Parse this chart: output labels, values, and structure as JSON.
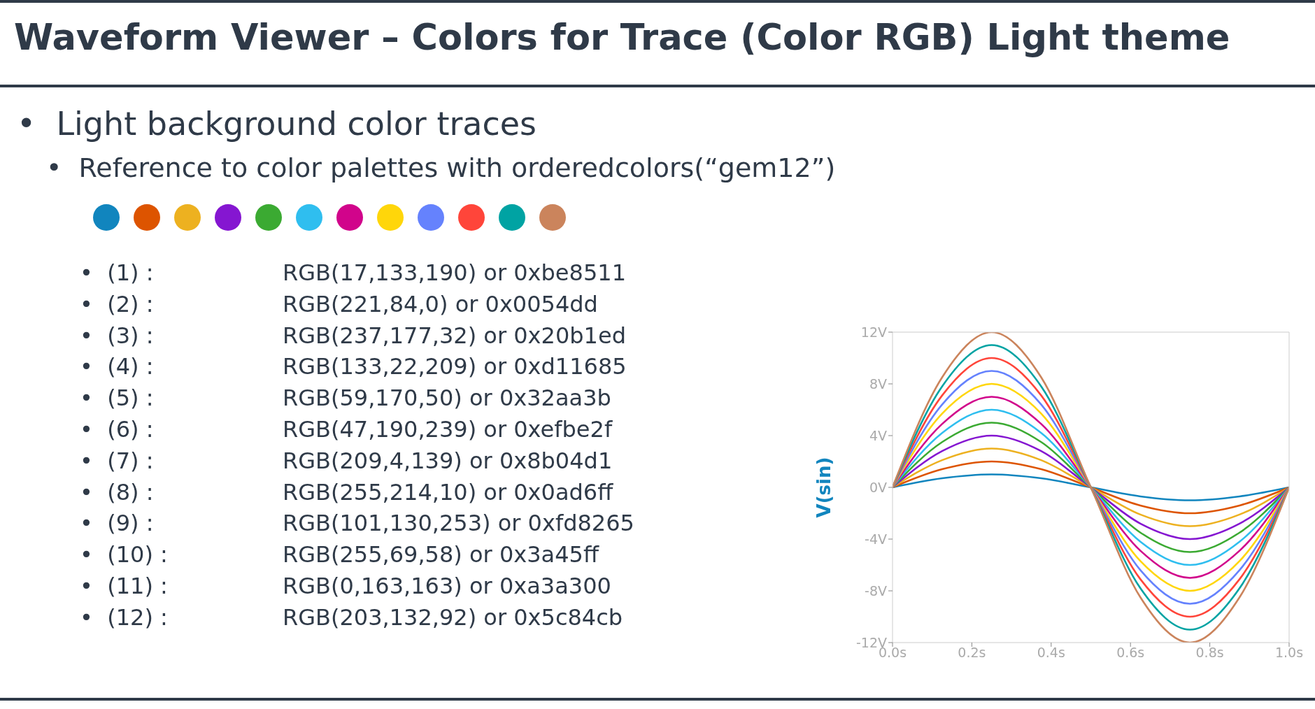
{
  "chart_data": {
    "type": "line",
    "title": "Waveform Viewer – Colors for Trace (Color RGB) Light theme",
    "ylabel": "V(sin)",
    "annotations": [
      "•  Light background color traces",
      "•  Reference to color palettes with orderedcolors(“gem12”)",
      "•  (1) :",
      "RGB(17,133,190) or 0xbe8511",
      "•  (2) :",
      "RGB(221,84,0) or 0x0054dd",
      "•  (3) :",
      "RGB(237,177,32) or 0x20b1ed",
      "•  (4) :",
      "RGB(133,22,209) or 0xd11685",
      "•  (5) :",
      "RGB(59,170,50) or 0x32aa3b",
      "•  (6) :",
      "RGB(47,190,239) or 0xefbe2f",
      "•  (7) :",
      "RGB(209,4,139) or 0x8b04d1",
      "•  (8) :",
      "RGB(255,214,10) or 0x0ad6ff",
      "•  (9) :",
      "RGB(101,130,253) or 0xfd8265",
      "•  (10) :",
      "RGB(255,69,58) or 0x3a45ff",
      "•  (11) :",
      "RGB(0,163,163) or 0xa3a300",
      "•  (12) :",
      "RGB(203,132,92) or 0x5c84cb"
    ],
    "x": [
      0,
      0.125,
      0.25,
      0.375,
      0.5,
      0.625,
      0.75,
      0.875,
      1
    ],
    "series": [
      {
        "color": "#1185be",
        "values": [
          0,
          0.7,
          1,
          0.7,
          0,
          -0.7,
          -1,
          -0.7,
          0
        ]
      },
      {
        "color": "#dd5400",
        "values": [
          0,
          1.4,
          2,
          1.4,
          0,
          -1.4,
          -2,
          -1.4,
          0
        ]
      },
      {
        "color": "#edb120",
        "values": [
          0,
          2.1,
          3,
          2.1,
          0,
          -2.1,
          -3,
          -2.1,
          0
        ]
      },
      {
        "color": "#8516d1",
        "values": [
          0,
          2.8,
          4,
          2.8,
          0,
          -2.8,
          -4,
          -2.8,
          0
        ]
      },
      {
        "color": "#3baa32",
        "values": [
          0,
          3.5,
          5,
          3.5,
          0,
          -3.5,
          -5,
          -3.5,
          0
        ]
      },
      {
        "color": "#2fbeef",
        "values": [
          0,
          4.2,
          6,
          4.2,
          0,
          -4.2,
          -6,
          -4.2,
          0
        ]
      },
      {
        "color": "#d1048b",
        "values": [
          0,
          4.9,
          7,
          4.9,
          0,
          -4.9,
          -7,
          -4.9,
          0
        ]
      },
      {
        "color": "#ffd60a",
        "values": [
          0,
          5.7,
          8,
          5.7,
          0,
          -5.7,
          -8,
          -5.7,
          0
        ]
      },
      {
        "color": "#6582fd",
        "values": [
          0,
          6.4,
          9,
          6.4,
          0,
          -6.4,
          -9,
          -6.4,
          0
        ]
      },
      {
        "color": "#ff453a",
        "values": [
          0,
          7.1,
          10,
          7.1,
          0,
          -7.1,
          -10,
          -7.1,
          0
        ]
      },
      {
        "color": "#00a3a3",
        "values": [
          0,
          7.8,
          11,
          7.8,
          0,
          -7.8,
          -11,
          -7.8,
          0
        ]
      },
      {
        "color": "#cb845c",
        "values": [
          0,
          8.5,
          12,
          8.5,
          0,
          -8.5,
          -12,
          -8.5,
          0
        ]
      }
    ],
    "xlim": [
      0,
      1
    ],
    "xticks": [
      {
        "value": 0,
        "label": "0.0s"
      },
      {
        "value": 0.2,
        "label": "0.2s"
      },
      {
        "value": 0.4,
        "label": "0.4s"
      },
      {
        "value": 0.6,
        "label": "0.6s"
      },
      {
        "value": 0.8,
        "label": "0.8s"
      },
      {
        "value": 1,
        "label": "1.0s"
      }
    ],
    "ylim": [
      -12,
      12
    ],
    "yticks": [
      {
        "value": -12,
        "label": "-12V"
      },
      {
        "value": -8,
        "label": "-8V"
      },
      {
        "value": -4,
        "label": "-4V"
      },
      {
        "value": 0,
        "label": "0V"
      },
      {
        "value": 4,
        "label": "4V"
      },
      {
        "value": 8,
        "label": "8V"
      },
      {
        "value": 12,
        "label": "12V"
      }
    ],
    "grid": false,
    "legend": false,
    "marker": "none",
    "line_style": "solid"
  }
}
